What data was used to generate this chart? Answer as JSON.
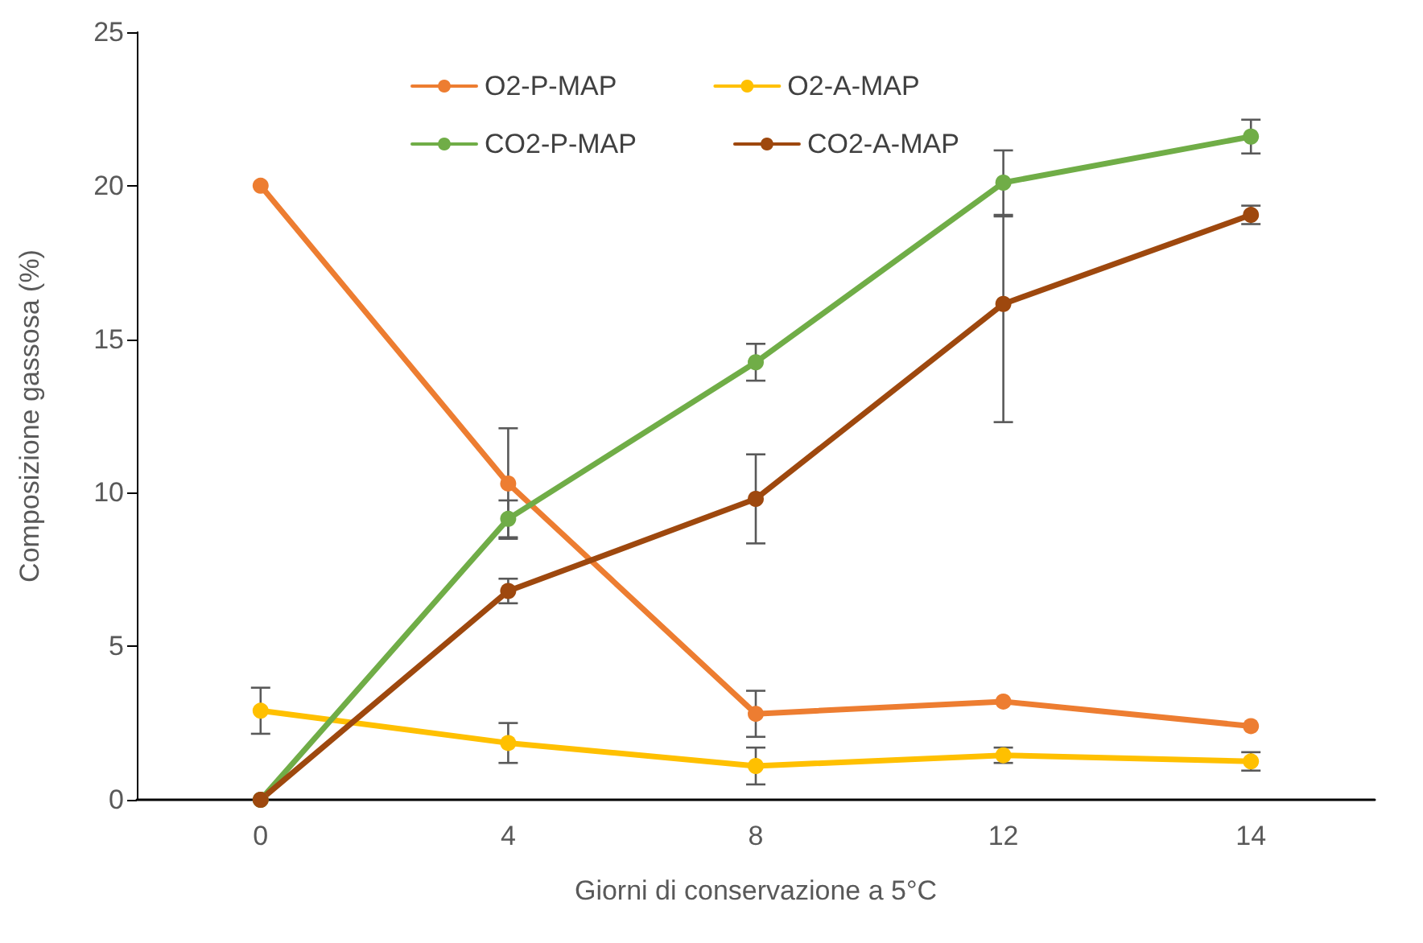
{
  "chart_data": {
    "type": "line",
    "xlabel": "Giorni di conservazione a 5°C",
    "ylabel": "Composizione gassosa (%)",
    "categories": [
      "0",
      "4",
      "8",
      "12",
      "14"
    ],
    "series": [
      {
        "name": "O2-P-MAP",
        "color": "#ed7d31",
        "values": [
          20,
          10.3,
          2.8,
          3.2,
          2.4
        ],
        "errors": [
          null,
          1.8,
          0.75,
          null,
          null
        ]
      },
      {
        "name": "O2-A-MAP",
        "color": "#ffc000",
        "values": [
          2.9,
          1.85,
          1.1,
          1.45,
          1.25
        ],
        "errors": [
          0.75,
          0.65,
          0.6,
          0.25,
          0.3
        ]
      },
      {
        "name": "CO2-P-MAP",
        "color": "#70ad47",
        "values": [
          0,
          9.15,
          14.25,
          20.1,
          21.6
        ],
        "errors": [
          null,
          0.6,
          0.6,
          1.05,
          0.55
        ]
      },
      {
        "name": "CO2-A-MAP",
        "color": "#9e480e",
        "values": [
          0,
          6.8,
          9.8,
          16.15,
          19.05
        ],
        "errors": [
          null,
          0.4,
          1.45,
          [
            12.3,
            19.0
          ],
          0.3
        ]
      }
    ],
    "ylim": [
      0,
      25
    ],
    "yticks": [
      0,
      5,
      10,
      15,
      20,
      25
    ],
    "grid": false,
    "legend": "top",
    "marker": "circle",
    "line_style": "solid"
  }
}
